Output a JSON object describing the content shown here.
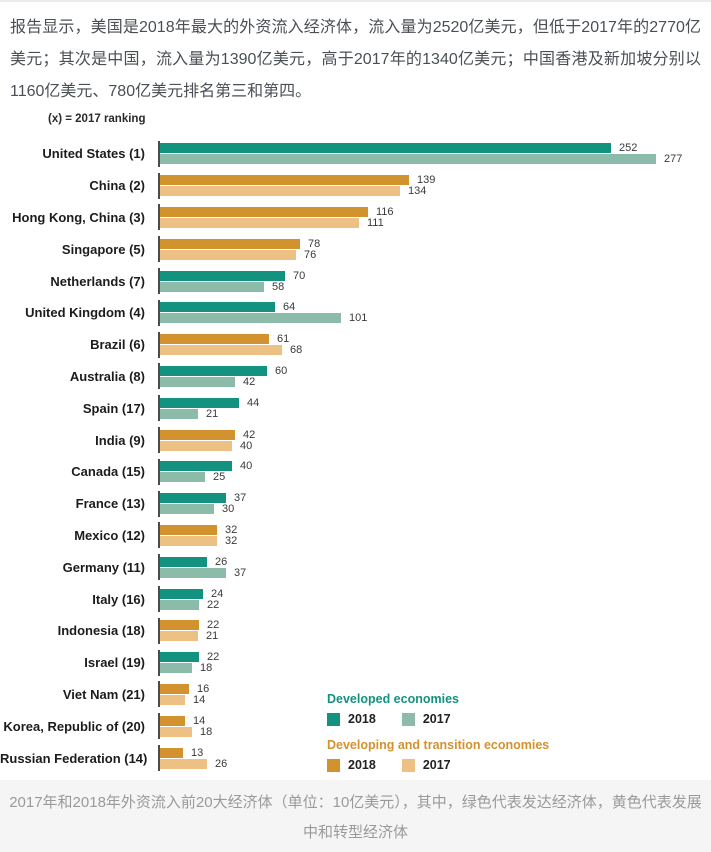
{
  "intro": "报告显示，美国是2018年最大的外资流入经济体，流入量为2520亿美元，但低于2017年的2770亿美元；其次是中国，流入量为1390亿美元，高于2017年的1340亿美元；中国香港及新加坡分别以1160亿美元、780亿美元排名第三和第四。",
  "chart_data": {
    "type": "bar",
    "orientation": "horizontal",
    "note": "(x) = 2017 ranking",
    "categories": [
      "United States (1)",
      "China (2)",
      "Hong Kong, China (3)",
      "Singapore (5)",
      "Netherlands (7)",
      "United Kingdom (4)",
      "Brazil (6)",
      "Australia (8)",
      "Spain (17)",
      "India (9)",
      "Canada (15)",
      "France (13)",
      "Mexico (12)",
      "Germany (11)",
      "Italy (16)",
      "Indonesia (18)",
      "Israel (19)",
      "Viet Nam (21)",
      "Korea, Republic of (20)",
      "Russian Federation (14)"
    ],
    "groups": [
      "developed",
      "developing",
      "developing",
      "developing",
      "developed",
      "developed",
      "developing",
      "developed",
      "developed",
      "developing",
      "developed",
      "developed",
      "developing",
      "developed",
      "developed",
      "developing",
      "developed",
      "developing",
      "developing",
      "developing"
    ],
    "series": [
      {
        "name": "2018",
        "values": [
          252,
          139,
          116,
          78,
          70,
          64,
          61,
          60,
          44,
          42,
          40,
          37,
          32,
          26,
          24,
          22,
          22,
          16,
          14,
          13
        ]
      },
      {
        "name": "2017",
        "values": [
          277,
          134,
          111,
          76,
          58,
          101,
          68,
          42,
          21,
          40,
          25,
          30,
          32,
          37,
          22,
          21,
          18,
          14,
          18,
          26
        ]
      }
    ],
    "xlim": [
      0,
      277
    ],
    "legend": {
      "developed": {
        "label": "Developed economies",
        "items": [
          "2018",
          "2017"
        ]
      },
      "developing": {
        "label": "Developing and transition economies",
        "items": [
          "2018",
          "2017"
        ]
      }
    },
    "colors": {
      "developed_2018": "#149280",
      "developed_2017": "#8cbbaa",
      "developing_2018": "#d2922e",
      "developing_2017": "#ecc183"
    }
  },
  "caption": "2017年和2018年外资流入前20大经济体（单位：10亿美元），其中，绿色代表发达经济体，黄色代表发展中和转型经济体"
}
